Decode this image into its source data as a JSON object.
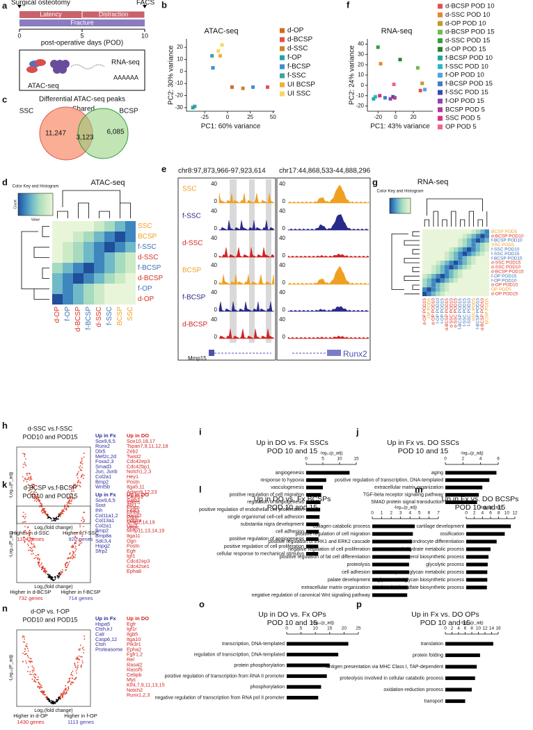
{
  "panel_a": {
    "label": "a",
    "start": "Surgical osteotomy",
    "end": "FACS",
    "phases": [
      "Latency",
      "Distraction",
      "Fracture"
    ],
    "days": [
      0,
      5,
      10
    ],
    "axis_label": "post-operative days (POD)",
    "assays": [
      "ATAC-seq",
      "RNA-seq"
    ],
    "poly_a": "AAAAAA"
  },
  "panel_c": {
    "label": "c",
    "title": "Differential ATAC-seq peaks",
    "sets": [
      "SSC",
      "Shared",
      "BCSP"
    ],
    "counts": [
      "11,247",
      "3,123",
      "6,085"
    ]
  },
  "panel_d": {
    "label": "d",
    "title": "ATAC-seq",
    "key": "Color Key and Histogram",
    "key_y": "Count",
    "key_x": "Value",
    "rows": [
      "SSC",
      "BCSP",
      "f-SSC",
      "d-SSC",
      "f-BCSP",
      "d-BCSP",
      "f-OP",
      "d-OP"
    ],
    "columns": [
      "d-OP",
      "f-OP",
      "d-BCSP",
      "f-BCSP",
      "d-SSC",
      "f-SSC",
      "BCSP",
      "SSC"
    ]
  },
  "panel_e": {
    "label": "e",
    "loci": [
      "chr8:97,873,966-97,923,614",
      "chr17:44,868,533-44,888,296"
    ],
    "tracks": [
      "SSC",
      "f-SSC",
      "d-SSC",
      "BCSP",
      "f-BCSP",
      "d-BCSP"
    ],
    "scale_max": "40",
    "scale_min": "0",
    "genes": [
      "Mmp15",
      "Runx2"
    ]
  },
  "panel_g": {
    "label": "g",
    "title": "RNA-seq",
    "key": "Color Key and Histogram",
    "rows": [
      "BCSP POD5",
      "d-BCSP POD10",
      "f-BCSP POD10",
      "SSC POD5",
      "f-SSC POD10",
      "f-SSC POD15",
      "f-BCSP POD15",
      "d-SSC POD15",
      "d-SSC POD10",
      "d-BCSP POD15",
      "f-OP POD15",
      "f-OP POD10",
      "d-OP POD10",
      "OP POD5",
      "d-OP POD15"
    ]
  },
  "volcanoes": [
    {
      "label": "h",
      "title": "d-SSC vs.f-SSC",
      "subtitle": "POD10 and POD15",
      "y_label": "-Log₁₀(P_adj)",
      "x_label": "Log₂(fold change)",
      "fx_head": "Up in Fx",
      "fx_genes": [
        "Sox9,6,5",
        "Runx2",
        "Dlx5",
        "Mef2c,2d",
        "Foxa2,3",
        "Smad3",
        "Jun, Junb",
        "Col2a1",
        "Bmp2",
        "Wnt5b"
      ],
      "do_head": "Up in DO",
      "do_genes": [
        "Sox10,18,17",
        "Tspan7,9,11,12,18",
        "Zeb2",
        "Twist2",
        "Cdc42ep3",
        "Cdc42bp1",
        "Notch1,2,3",
        "Hey1",
        "Postn",
        "Itga5,11",
        "Adam9,12,23",
        "Cadm3",
        "Icam1",
        "Esam",
        "Efnb2",
        "Pdpn",
        "Mmp2,14,19",
        "Vegfc"
      ],
      "left": "Higher in d-SSC",
      "left_count": "1104 genes",
      "right": "Higher in f-SSC",
      "right_count": "920 genes"
    },
    {
      "label": "k",
      "title": "d-BCSP vs.f-BCSP",
      "subtitle": "POD10 and POD15",
      "y_label": "-Log₁₀(P_adj)",
      "x_label": "Log₂(fold change)",
      "fx_head": "Up in Fx",
      "fx_genes": [
        "Sox9,6,5",
        "Sost",
        "Ihh",
        "Col11a1,2",
        "Col13a1",
        "Col2a1",
        "Bmp2",
        "Bmp8a",
        "Sdc3,4",
        "Hspg2",
        "Sfrp2"
      ],
      "do_head": "Up in DO",
      "do_genes": [
        "Satb2",
        "Alx1",
        "Foxf1",
        "Hand2",
        "Pdgfra",
        "Osr2",
        "Mmp11,13,14,19",
        "Itga11",
        "Ogn",
        "Postn",
        "Egfr",
        "Igf1",
        "Cdc42ep3",
        "Cdc42se1",
        "Epha8"
      ],
      "left": "Higher in d-BCSP",
      "left_count": "732 genes",
      "right": "Higher in f-BCSP",
      "right_count": "714 genes"
    },
    {
      "label": "n",
      "title": "d-OP vs. f-OP",
      "subtitle": "POD10 and POD15",
      "y_label": "-Log₁₀(P_adj)",
      "x_label": "Log₂(fold change)",
      "fx_head": "Up in Fx",
      "fx_genes": [
        "Hspa5",
        "Ctsh,k,l",
        "Calr",
        "Casp6,12",
        "Ctsh",
        "Proteasome"
      ],
      "do_head": "Up in DO",
      "do_genes": [
        "Egfr",
        "Igf1r",
        "Itgb5",
        "Itga10",
        "Pik3r1",
        "Epha2",
        "Fgfr1,2",
        "Rel",
        "Rasal2",
        "Rassf5",
        "Cebpb",
        "Myc",
        "Klf4,7,9,11,13,15",
        "Notch2",
        "Runx1,2,3"
      ],
      "left": "Higher in d-OP",
      "left_count": "1430 genes",
      "right": "Higher in f-OP",
      "right_count": "1113 genes"
    }
  ],
  "chart_data": [
    {
      "type": "scatter",
      "label": "b",
      "title": "ATAC-seq",
      "x_label": "PC1: 60% variance",
      "y_label": "PC2: 30% variance",
      "xlim": [
        -45,
        52
      ],
      "xticks": [
        -25,
        0,
        25,
        50
      ],
      "ylim": [
        -33,
        27
      ],
      "yticks": [
        -30,
        -20,
        -10,
        0,
        10,
        20
      ],
      "series": [
        {
          "name": "d-OP",
          "color": "#d2691e",
          "x": [
            5
          ],
          "values": [
            -13
          ]
        },
        {
          "name": "d-BCSP",
          "color": "#e0524a",
          "x": [
            44
          ],
          "values": [
            -13
          ]
        },
        {
          "name": "d-SSC",
          "color": "#c8862a",
          "x": [
            17
          ],
          "values": [
            -14
          ]
        },
        {
          "name": "f-OP",
          "color": "#1aa5a5",
          "x": [
            -38
          ],
          "values": [
            -30
          ]
        },
        {
          "name": "f-BCSP",
          "color": "#3e8ed0",
          "x": [
            -16,
            28
          ],
          "values": [
            3,
            -13
          ]
        },
        {
          "name": "f-SSC",
          "color": "#3aa1a9",
          "x": [
            -36,
            -17
          ],
          "values": [
            -29,
            13
          ]
        },
        {
          "name": "UI BCSP",
          "color": "#f0b030",
          "x": [
            -8
          ],
          "values": [
            13
          ]
        },
        {
          "name": "UI SSC",
          "color": "#f5d860",
          "x": [
            -10,
            -6
          ],
          "values": [
            17,
            22
          ]
        }
      ]
    },
    {
      "type": "scatter",
      "label": "f",
      "title": "RNA-seq",
      "x_label": "PC1: 43% variance",
      "y_label": "PC2: 24% variance",
      "xlim": [
        -32,
        42
      ],
      "xticks": [
        -20,
        0,
        20
      ],
      "ylim": [
        -25,
        45
      ],
      "yticks": [
        -20,
        -10,
        0,
        10,
        20,
        30,
        40
      ],
      "series": [
        {
          "name": "d-BCSP POD 10",
          "color": "#e0524a",
          "x": [
            28
          ],
          "values": [
            -5
          ]
        },
        {
          "name": "d-SSC POD 10",
          "color": "#e8862a",
          "x": [
            -17
          ],
          "values": [
            21
          ]
        },
        {
          "name": "d-OP POD 10",
          "color": "#c8962a",
          "x": [
            30
          ],
          "values": [
            2
          ]
        },
        {
          "name": "d-BCSP POD 15",
          "color": "#6abf4b",
          "x": [
            25
          ],
          "values": [
            17
          ]
        },
        {
          "name": "d-SSC POD 15",
          "color": "#3a9a3a",
          "x": [
            -20
          ],
          "values": [
            37
          ]
        },
        {
          "name": "d-OP POD 15",
          "color": "#2e7d32",
          "x": [
            5
          ],
          "values": [
            25
          ]
        },
        {
          "name": "f-BCSP POD 10",
          "color": "#26a69a",
          "x": [
            -25
          ],
          "values": [
            -13
          ]
        },
        {
          "name": "f-SSC POD 10",
          "color": "#29b6c5",
          "x": [
            -23
          ],
          "values": [
            -11
          ]
        },
        {
          "name": "f-OP POD 10",
          "color": "#4fa3e0",
          "x": [
            33
          ],
          "values": [
            -4
          ]
        },
        {
          "name": "f-BCSP POD 15",
          "color": "#3f7fbf",
          "x": [
            -12
          ],
          "values": [
            -12
          ]
        },
        {
          "name": "f-SSC POD 15",
          "color": "#3949ab",
          "x": [
            -3
          ],
          "values": [
            -11
          ]
        },
        {
          "name": "f-OP POD 15",
          "color": "#8e44ad",
          "x": [
            -6
          ],
          "values": [
            -13
          ]
        },
        {
          "name": "BCSP POD 5",
          "color": "#b03a9c",
          "x": [
            -1
          ],
          "values": [
            -12
          ]
        },
        {
          "name": "SSC POD 5",
          "color": "#d63384",
          "x": [
            -18
          ],
          "values": [
            -10
          ]
        },
        {
          "name": "OP POD 5",
          "color": "#f06292",
          "x": [
            -2
          ],
          "values": [
            1
          ]
        }
      ]
    },
    {
      "type": "bar",
      "label": "i",
      "title": "Up in DO vs. Fx SSCs",
      "subtitle": "POD 10 and 15",
      "x_label": "-log₁₀(p_adj)",
      "color": "#000000",
      "categories": [
        "angiogenesis",
        "response to hypoxia",
        "vasculogenesis",
        "positive regulation of cell migration",
        "regulation of angiogenesis",
        "positive regulation of endothelial cell proliferation",
        "single organismal cell-cell adhesion",
        "substantia nigra development",
        "cell adhesion",
        "positive regulation of angiogenesis",
        "positive regulation of cell proliferation",
        "cellular response to mechanical stimulus"
      ],
      "values": [
        13,
        6,
        5,
        4.5,
        4.3,
        4.2,
        4,
        3.8,
        3.8,
        3.7,
        3.6,
        3.6
      ],
      "xlim": [
        0,
        15
      ],
      "xticks": [
        0,
        5,
        10,
        15
      ]
    },
    {
      "type": "bar",
      "label": "j",
      "title": "Up in Fx vs. DO SSCs",
      "subtitle": "POD 10 and 15",
      "x_label": "-log₁₀(p_adj)",
      "color": "#000000",
      "categories": [
        "aging",
        "positive regulation of transcription, DNA-templated",
        "extracellular matrix organization",
        "TGF-beta receptor signaling pathway",
        "SMAD protein signal transduction"
      ],
      "values": [
        5.8,
        5,
        4.2,
        3.8,
        3.6
      ],
      "xlim": [
        0,
        6
      ],
      "xticks": [
        0,
        2,
        4,
        6
      ]
    },
    {
      "type": "bar",
      "label": "l",
      "title": "Up in DO vs. Fx BCSPs",
      "subtitle": "POD 10 and 15",
      "x_label": "-log₁₀(p_adj)",
      "color": "#000000",
      "categories": [
        "collagen catabolic process",
        "positive regulation of cell migration",
        "positive regulation of ERK1 and ERK2 cascade",
        "negative regulation of cell proliferation",
        "positive regulation of fat cell differentiation",
        "proteolysis",
        "cell adhesion",
        "palate development",
        "extracellular matrix organization",
        "negative regulation of canonical Wnt signaling pathway"
      ],
      "values": [
        4.5,
        4.3,
        4.2,
        4.1,
        4,
        3.9,
        3.9,
        3.8,
        3.8,
        3.7
      ],
      "xlim": [
        0,
        7
      ],
      "xticks": [
        0,
        1,
        2,
        3,
        4,
        5,
        6,
        7
      ]
    },
    {
      "type": "bar",
      "label": "m",
      "title": "Up in Fx vs. DO BCSPs",
      "subtitle": "POD 10 and 15",
      "x_label": "-log₁₀(p_adj)",
      "color": "#000000",
      "categories": [
        "cartilage development",
        "ossification",
        "chondrocyte differentiation",
        "carbohydrate metabolic process",
        "sterol biosynthetic process",
        "glycolytic process",
        "proteoglycan metabolic process",
        "glycosaminoglycan biosynthetic process",
        "chondroitin sulfate biosynthetic process"
      ],
      "values": [
        11,
        9.5,
        7.5,
        6,
        5.5,
        5.3,
        5.2,
        5.2,
        5.1
      ],
      "xlim": [
        0,
        12
      ],
      "xticks": [
        0,
        2,
        4,
        6,
        8,
        10,
        12
      ]
    },
    {
      "type": "bar",
      "label": "o",
      "title": "Up in DO vs. Fx OPs",
      "subtitle": "POD 10 and 15",
      "x_label": "-log₁₀(p_adj)",
      "color": "#000000",
      "categories": [
        "transcription, DNA-templated",
        "regulation of transcription, DNA-templated",
        "protein phosphorylation",
        "positive regulation of transcription from RNA II promoter",
        "phosphorylation",
        "negative regulation of transcription from RNA pol II promoter"
      ],
      "values": [
        21.5,
        18,
        15,
        14,
        12,
        11
      ],
      "xlim": [
        0,
        25
      ],
      "xticks": [
        0,
        5,
        10,
        15,
        20,
        25
      ]
    },
    {
      "type": "bar",
      "label": "p",
      "title": "Up in Fx vs. DO OPs",
      "subtitle": "POD 10 and 15",
      "x_label": "-log₁₀(p_adj)",
      "color": "#000000",
      "categories": [
        "translation",
        "protein folding",
        "antigen presentation via MHC Class I, TAP-dependent",
        "proteolysis involved in cellular catabolic process",
        "oxidation-reduction process",
        "transport"
      ],
      "values": [
        14.5,
        10.5,
        9.5,
        9,
        8,
        6
      ],
      "xlim": [
        0,
        16
      ],
      "xticks": [
        0,
        2,
        4,
        6,
        8,
        10,
        12,
        14,
        16
      ]
    }
  ]
}
